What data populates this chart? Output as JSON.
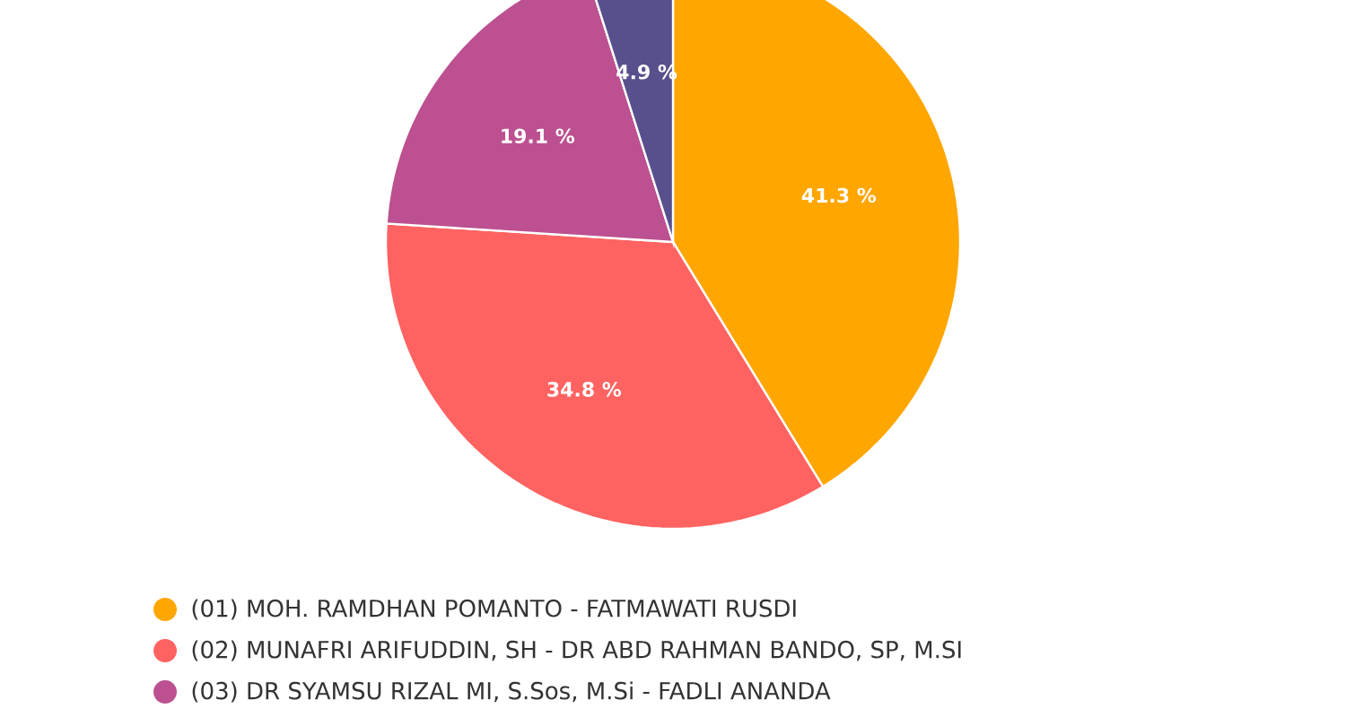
{
  "chart_data": {
    "type": "pie",
    "categories": [
      "(01) MOH. RAMDHAN POMANTO - FATMAWATI RUSDI",
      "(02) MUNAFRI ARIFUDDIN, SH - DR ABD RAHMAN BANDO, SP, M.SI",
      "(03) DR SYAMSU RIZAL MI, S.Sos, M.Si - FADLI ANANDA",
      null
    ],
    "values": [
      41.3,
      34.8,
      19.1,
      4.9
    ],
    "value_labels": [
      "41.3 %",
      "34.8 %",
      "19.1 %",
      "4.9 %"
    ],
    "colors": [
      "#ffa600",
      "#ff6361",
      "#bc5090",
      "#58508d"
    ],
    "legend": "bottom"
  }
}
